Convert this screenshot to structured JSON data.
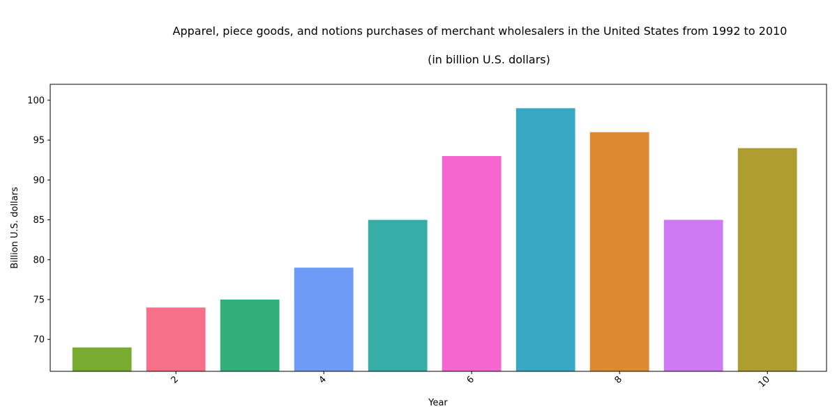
{
  "chart_data": {
    "type": "bar",
    "title": "Apparel, piece goods, and notions purchases of merchant wholesalers in the United States from 1992 to 2010",
    "subtitle": "(in billion U.S. dollars)",
    "xlabel": "Year",
    "ylabel": "Billion U.S. dollars",
    "x": [
      1,
      2,
      3,
      4,
      5,
      6,
      7,
      8,
      9,
      10
    ],
    "values": [
      69,
      74,
      75,
      79,
      85,
      93,
      99,
      96,
      85,
      94
    ],
    "colors": [
      "#77ac30",
      "#f5718a",
      "#33b07a",
      "#6e9bf5",
      "#37ada7",
      "#f566cf",
      "#38a7c4",
      "#dc8932",
      "#cc79f2",
      "#ae9d31"
    ],
    "xticks": [
      "2",
      "4",
      "6",
      "8",
      "10"
    ],
    "yticks": [
      "70",
      "75",
      "80",
      "85",
      "90",
      "95",
      "100"
    ],
    "ylim": [
      66,
      102
    ],
    "xlim": [
      0.3,
      10.8
    ],
    "grid": false,
    "legend": "none"
  }
}
